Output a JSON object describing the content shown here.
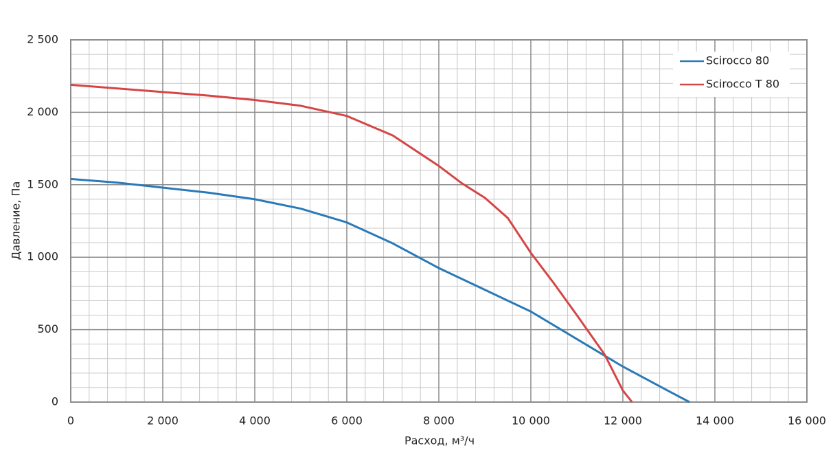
{
  "chart_data": {
    "type": "line",
    "x_label": "Расход, м³/ч",
    "y_label": "Давление, Па",
    "xlim": [
      0,
      16000
    ],
    "ylim": [
      0,
      2500
    ],
    "xticks": [
      0,
      {
        "value": 2000,
        "label": "2 000"
      },
      {
        "value": 4000,
        "label": "4 000"
      },
      {
        "value": 6000,
        "label": "6 000"
      },
      {
        "value": 8000,
        "label": "8 000"
      },
      {
        "value": 10000,
        "label": "10 000"
      },
      {
        "value": 12000,
        "label": "12 000"
      },
      {
        "value": 14000,
        "label": "14 000"
      },
      {
        "value": 16000,
        "label": "16 000"
      }
    ],
    "yticks": [
      0,
      500,
      {
        "value": 1000,
        "label": "1 000"
      },
      {
        "value": 1500,
        "label": "1 500"
      },
      {
        "value": 2000,
        "label": "2 000"
      },
      {
        "value": 2500,
        "label": "2 500"
      }
    ],
    "grid": true,
    "minor_grid": true,
    "legend": "upper right",
    "series": [
      {
        "name": "Scirocco 80",
        "color": "#2a7ab8",
        "x": [
          0,
          1000,
          2000,
          3000,
          4000,
          5000,
          6000,
          7000,
          8000,
          9000,
          10000,
          11000,
          12000,
          13000,
          13450
        ],
        "values": [
          1540,
          1515,
          1480,
          1445,
          1400,
          1335,
          1240,
          1095,
          925,
          775,
          625,
          435,
          245,
          75,
          0
        ]
      },
      {
        "name": "Scirocco T 80",
        "color": "#d64545",
        "x": [
          0,
          1000,
          2000,
          3000,
          4000,
          5000,
          6000,
          7000,
          8000,
          8500,
          9000,
          9500,
          10000,
          10500,
          11000,
          11600,
          12000,
          12200
        ],
        "values": [
          2190,
          2165,
          2140,
          2115,
          2085,
          2045,
          1975,
          1840,
          1630,
          1510,
          1410,
          1270,
          1030,
          820,
          600,
          330,
          80,
          0
        ]
      }
    ]
  }
}
